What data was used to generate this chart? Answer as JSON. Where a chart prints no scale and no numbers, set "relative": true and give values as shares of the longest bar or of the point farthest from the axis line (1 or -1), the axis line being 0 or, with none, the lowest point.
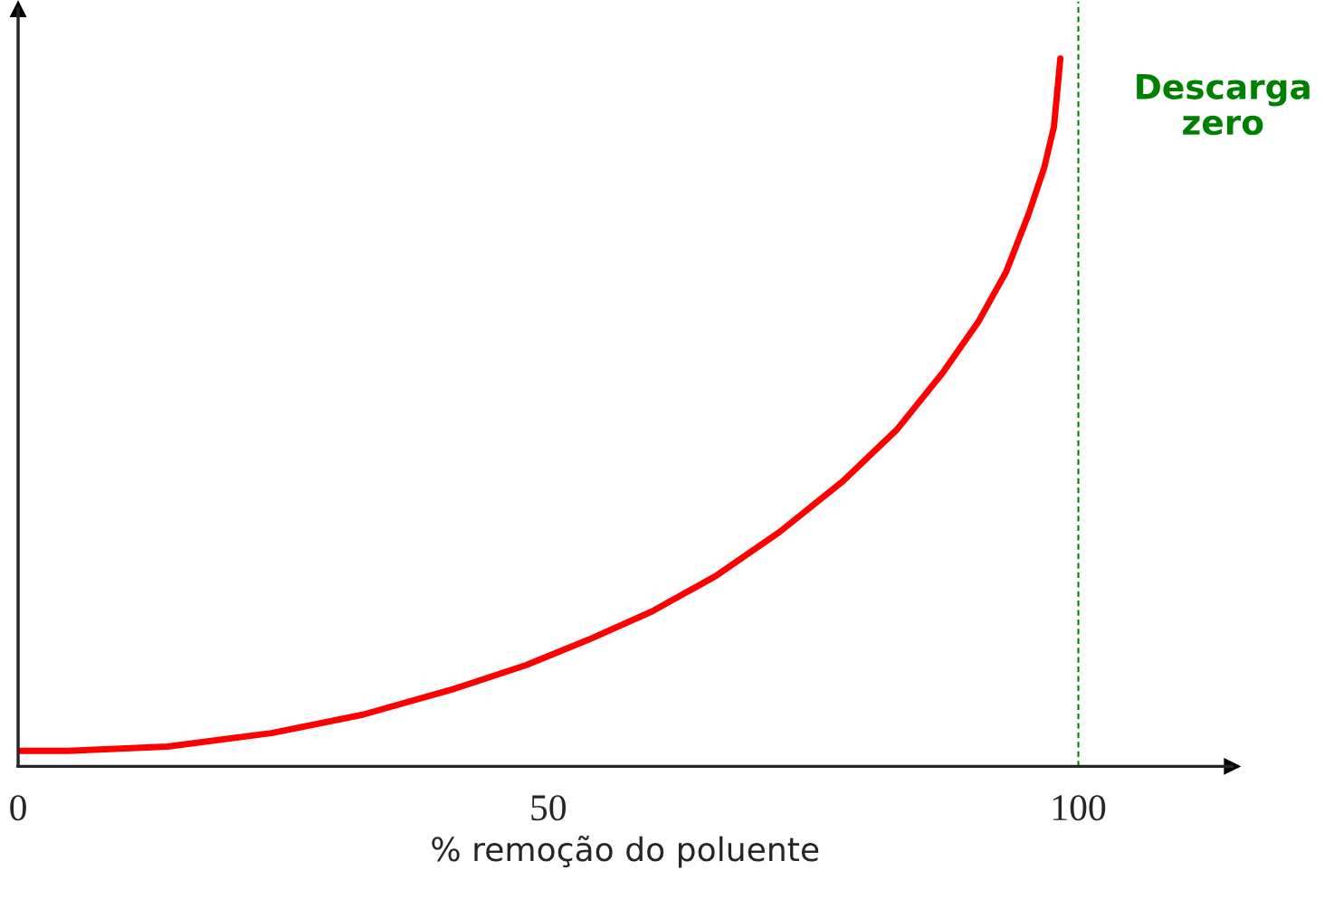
{
  "chart_data": {
    "type": "line",
    "relative": true,
    "xlabel": "% remoção do poluente",
    "x": [
      0,
      4.7,
      14.1,
      23.9,
      32.5,
      41.0,
      47.9,
      53.8,
      59.8,
      65.8,
      71.8,
      77.8,
      82.9,
      87.2,
      90.6,
      93.2,
      95.3,
      96.8,
      97.7,
      98.3
    ],
    "series": [
      {
        "color": "#ff0000",
        "values": [
          0.022,
          0.022,
          0.028,
          0.047,
          0.073,
          0.109,
          0.143,
          0.179,
          0.219,
          0.269,
          0.331,
          0.403,
          0.476,
          0.556,
          0.629,
          0.699,
          0.78,
          0.847,
          0.904,
          1.0
        ]
      }
    ],
    "xlim": [
      0,
      114.5
    ],
    "xticks": [
      0,
      50,
      100
    ],
    "ref_lines": [
      {
        "axis": "x",
        "value": 100,
        "label": "Descarga\nzero",
        "color": "#008000",
        "line_style": "dashed"
      }
    ]
  }
}
